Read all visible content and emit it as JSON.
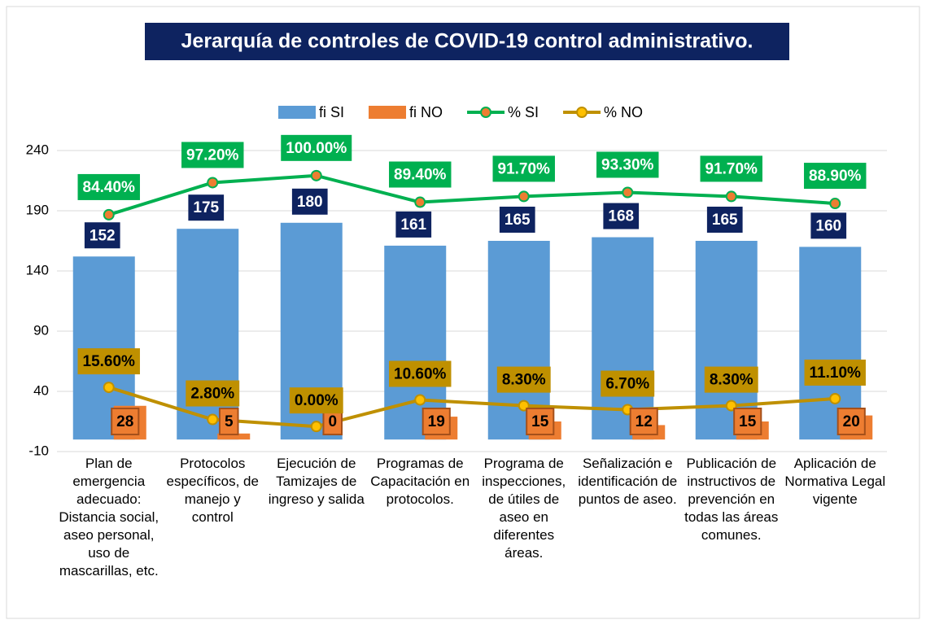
{
  "chart_data": {
    "type": "bar",
    "title": "Jerarquía de controles de COVID-19 control administrativo.",
    "categories": [
      "Plan de emergencia adecuado: Distancia social, aseo personal, uso de mascarillas, etc.",
      "Protocolos específicos, de manejo y control",
      "Ejecución de Tamizajes de ingreso y salida",
      "Programas de Capacitación en protocolos.",
      "Programa de inspecciones, de útiles de aseo en diferentes áreas.",
      "Señalización e identificación de puntos de aseo.",
      "Publicación de instructivos de prevención en todas las áreas comunes.",
      "Aplicación de Normativa Legal vigente"
    ],
    "ylim": [
      -10,
      240
    ],
    "yticks": [
      -10,
      40,
      90,
      140,
      190,
      240
    ],
    "y2lim": [
      -10,
      110
    ],
    "grid": true,
    "legend": "top",
    "series": [
      {
        "name": "fi SI",
        "type": "bar",
        "color": "#5b9bd5",
        "label_color": "#0e2360",
        "values": [
          152,
          175,
          180,
          161,
          165,
          168,
          165,
          160
        ]
      },
      {
        "name": "fi NO",
        "type": "bar",
        "color": "#ed7d31",
        "label_color": "#ed7d31",
        "values": [
          28,
          5,
          0,
          19,
          15,
          12,
          15,
          20
        ]
      },
      {
        "name": "% SI",
        "type": "line",
        "axis": "y2",
        "color": "#00b050",
        "label_color": "#00b050",
        "values": [
          84.4,
          97.2,
          100,
          89.4,
          91.7,
          93.3,
          91.7,
          88.9
        ],
        "value_labels": [
          "84.40%",
          "97.20%",
          "100.00%",
          "89.40%",
          "91.70%",
          "93.30%",
          "91.70%",
          "88.90%"
        ]
      },
      {
        "name": "% NO",
        "type": "line",
        "axis": "y2",
        "color": "#bf9000",
        "label_color": "#bf9000",
        "values": [
          15.6,
          2.8,
          0,
          10.6,
          8.3,
          6.7,
          8.3,
          11.1
        ],
        "value_labels": [
          "15.60%",
          "2.80%",
          "0.00%",
          "10.60%",
          "8.30%",
          "6.70%",
          "8.30%",
          "11.10%"
        ]
      }
    ]
  }
}
